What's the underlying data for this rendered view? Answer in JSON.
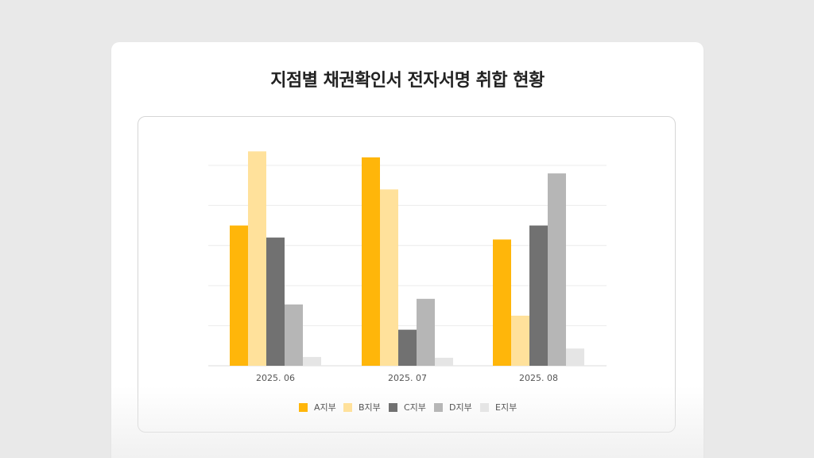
{
  "page": {
    "title": "지점별 채권확인서 전자서명 취합 현황"
  },
  "chart_data": {
    "type": "bar",
    "title": "지점별 채권확인서 전자서명 취합 현황",
    "xlabel": "",
    "ylabel": "",
    "categories": [
      "2025. 06",
      "2025. 07",
      "2025. 08"
    ],
    "series": [
      {
        "name": "A지부",
        "color": "#FFB60A",
        "values": [
          35,
          52,
          31.5
        ]
      },
      {
        "name": "B지부",
        "color": "#FFE19B",
        "values": [
          53.5,
          44,
          12.5
        ]
      },
      {
        "name": "C지부",
        "color": "#717171",
        "values": [
          32,
          9,
          35
        ]
      },
      {
        "name": "D지부",
        "color": "#B6B6B6",
        "values": [
          15.3,
          16.7,
          48
        ]
      },
      {
        "name": "E지부",
        "color": "#E5E5E5",
        "values": [
          2.2,
          2,
          4.3
        ]
      }
    ],
    "ylim": [
      0,
      50
    ],
    "y_gridlines": [
      0,
      10,
      20,
      30,
      40,
      50
    ],
    "grid": true,
    "legend_position": "bottom"
  }
}
